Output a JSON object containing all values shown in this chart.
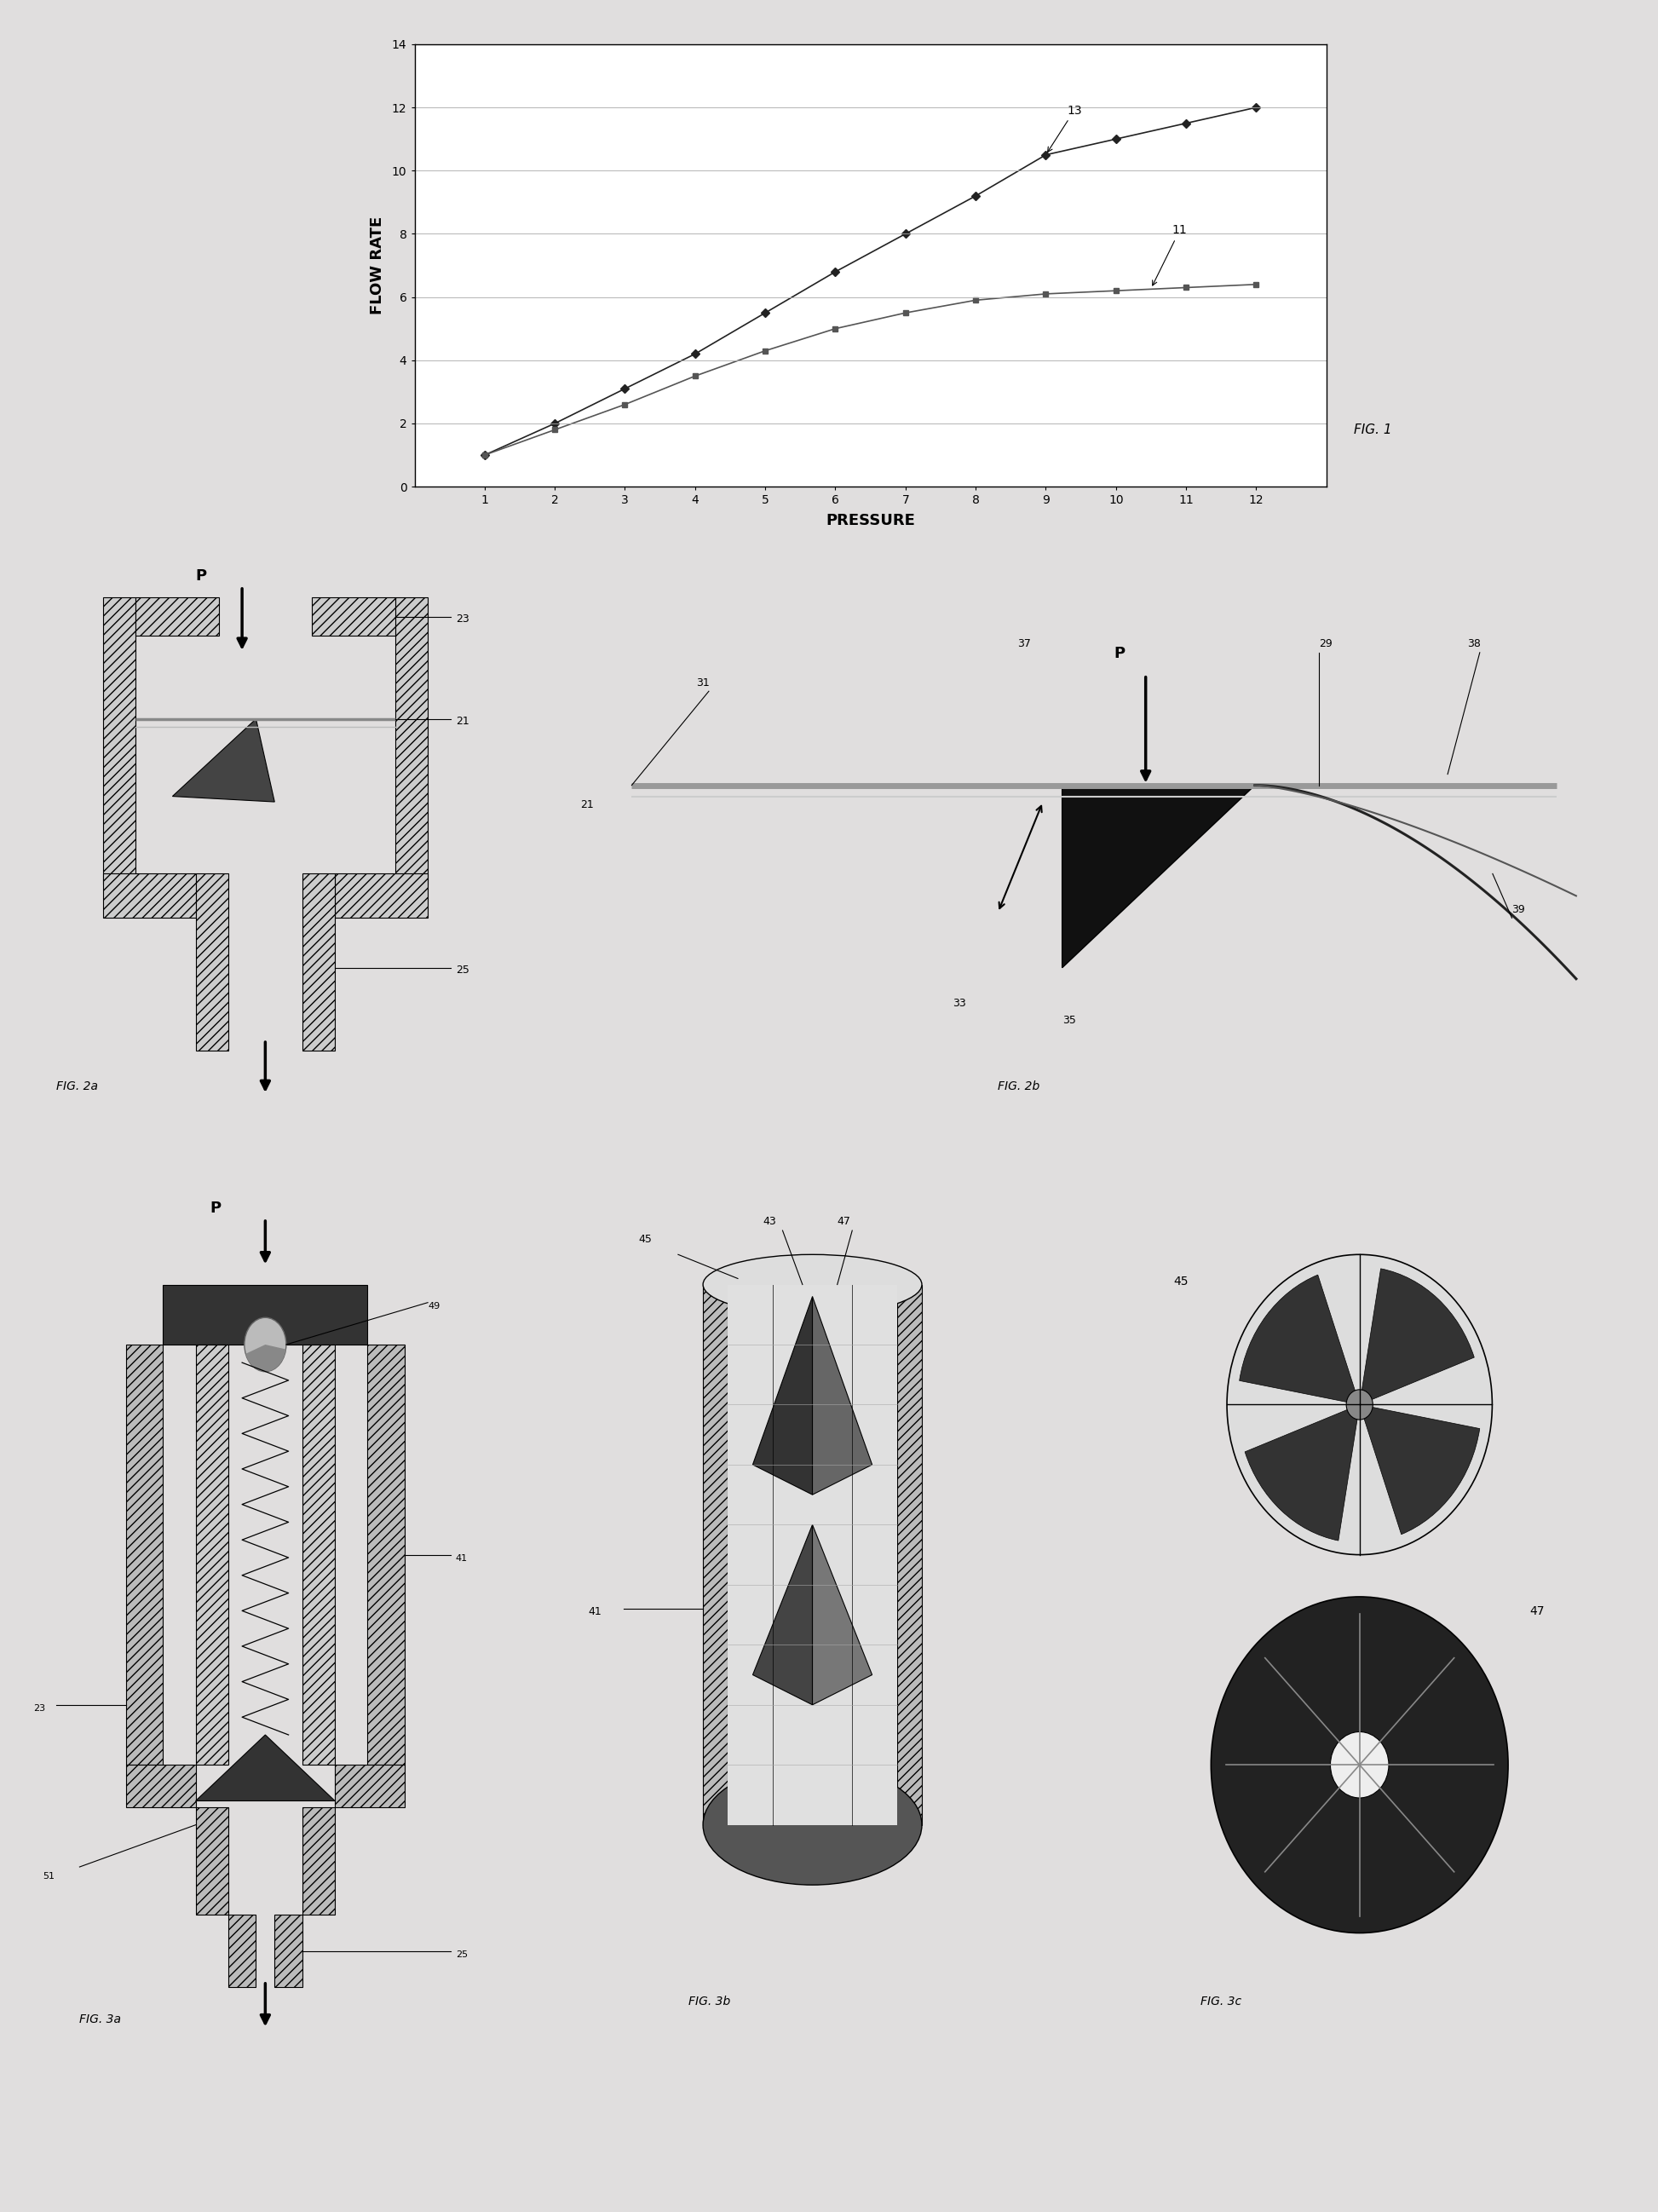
{
  "fig1": {
    "series13_x": [
      1,
      2,
      3,
      4,
      5,
      6,
      7,
      8,
      9,
      10,
      11,
      12
    ],
    "series13_y": [
      1.0,
      2.0,
      3.1,
      4.2,
      5.5,
      6.8,
      8.0,
      9.2,
      10.5,
      11.0,
      11.5,
      12.0
    ],
    "series11_x": [
      1,
      2,
      3,
      4,
      5,
      6,
      7,
      8,
      9,
      10,
      11,
      12
    ],
    "series11_y": [
      1.0,
      1.8,
      2.6,
      3.5,
      4.3,
      5.0,
      5.5,
      5.9,
      6.1,
      6.2,
      6.3,
      6.4
    ],
    "xlabel": "PRESSURE",
    "ylabel": "FLOW RATE",
    "xticks": [
      1,
      2,
      3,
      4,
      5,
      6,
      7,
      8,
      9,
      10,
      11,
      12
    ],
    "yticks": [
      0,
      2,
      4,
      6,
      8,
      10,
      12,
      14
    ],
    "fig_label": "FIG. 1"
  },
  "bg_color": "#e0dede",
  "white": "#ffffff",
  "black": "#000000",
  "dark_gray": "#333333",
  "mid_gray": "#888888",
  "light_gray": "#cccccc",
  "hatch_gray": "#aaaaaa"
}
